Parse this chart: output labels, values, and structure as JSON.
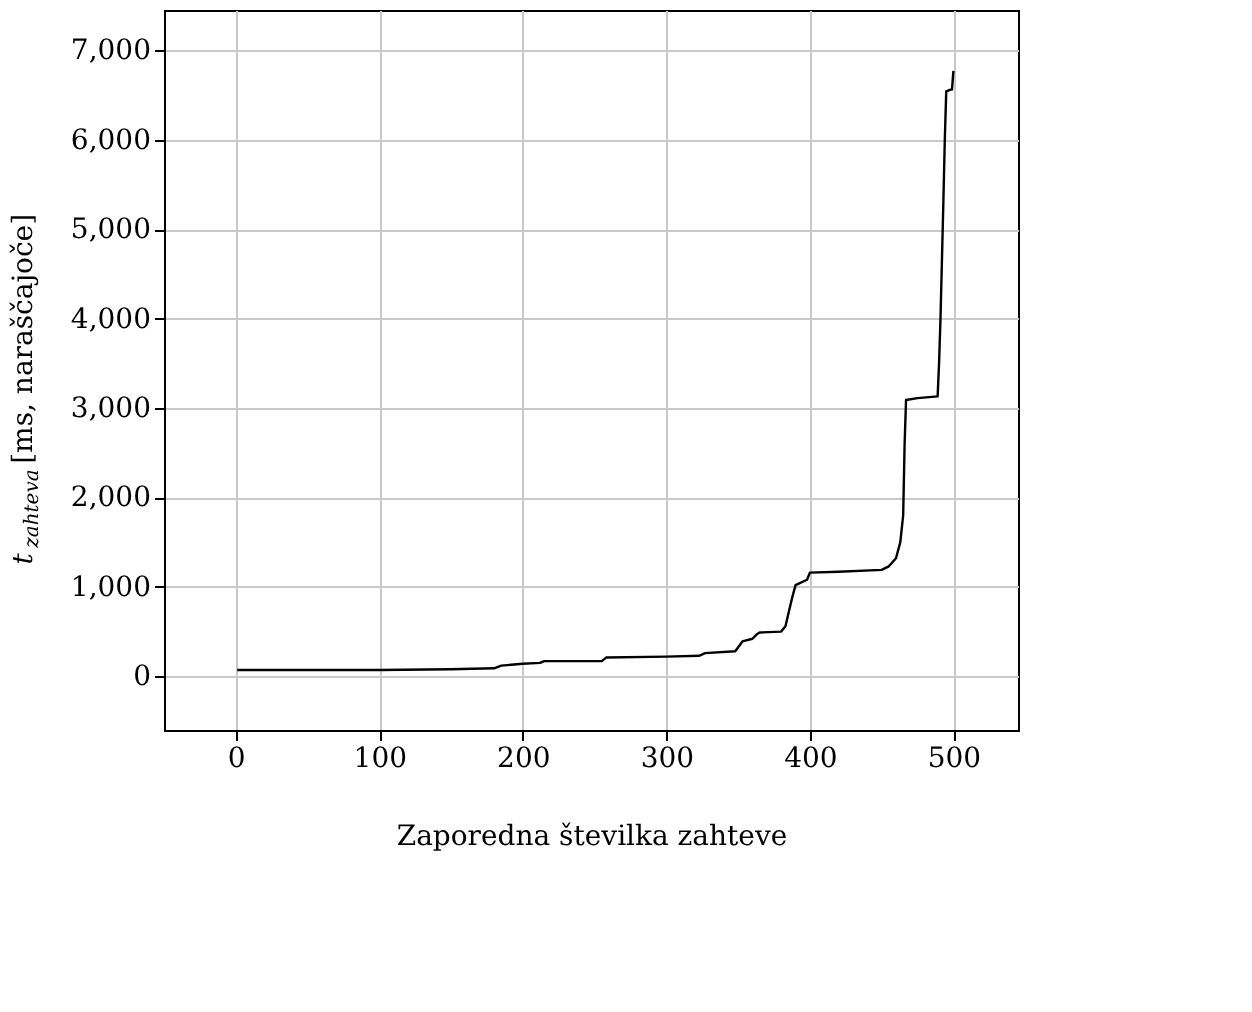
{
  "chart_data": {
    "type": "line",
    "xlabel": "Zaporedna številka zahteve",
    "ylabel": "t$_{zahteva}$ [ms, naraščajoče]",
    "x": [
      1,
      50,
      100,
      150,
      180,
      185,
      200,
      212,
      215,
      255,
      258,
      300,
      323,
      327,
      348,
      353,
      360,
      363,
      365,
      380,
      383,
      385,
      388,
      390,
      398,
      400,
      420,
      450,
      455,
      460,
      463,
      465,
      466,
      467,
      475,
      489,
      490,
      491,
      493,
      494,
      495,
      498,
      499,
      500
    ],
    "series": [
      {
        "color": "#000000",
        "values": [
          70,
          70,
          70,
          80,
          90,
          120,
          140,
          150,
          170,
          170,
          210,
          220,
          230,
          260,
          280,
          390,
          420,
          470,
          490,
          500,
          560,
          700,
          900,
          1020,
          1080,
          1160,
          1170,
          1190,
          1230,
          1320,
          1500,
          1800,
          2600,
          3090,
          3110,
          3130,
          3500,
          4000,
          5300,
          6000,
          6540,
          6560,
          6560,
          6770
        ]
      }
    ],
    "xlim": [
      -50,
      545
    ],
    "ylim": [
      -600,
      7450
    ],
    "xticks": [
      0,
      100,
      200,
      300,
      400,
      500
    ],
    "yticks": [
      {
        "value": 0,
        "label": "0"
      },
      {
        "value": 1000,
        "label": "1,000"
      },
      {
        "value": 2000,
        "label": "2,000"
      },
      {
        "value": 3000,
        "label": "3,000"
      },
      {
        "value": 4000,
        "label": "4,000"
      },
      {
        "value": 5000,
        "label": "5,000"
      },
      {
        "value": 6000,
        "label": "6,000"
      },
      {
        "value": 7000,
        "label": "7,000"
      }
    ],
    "grid": true,
    "marker": "none",
    "line_style": "solid",
    "legend": false
  }
}
